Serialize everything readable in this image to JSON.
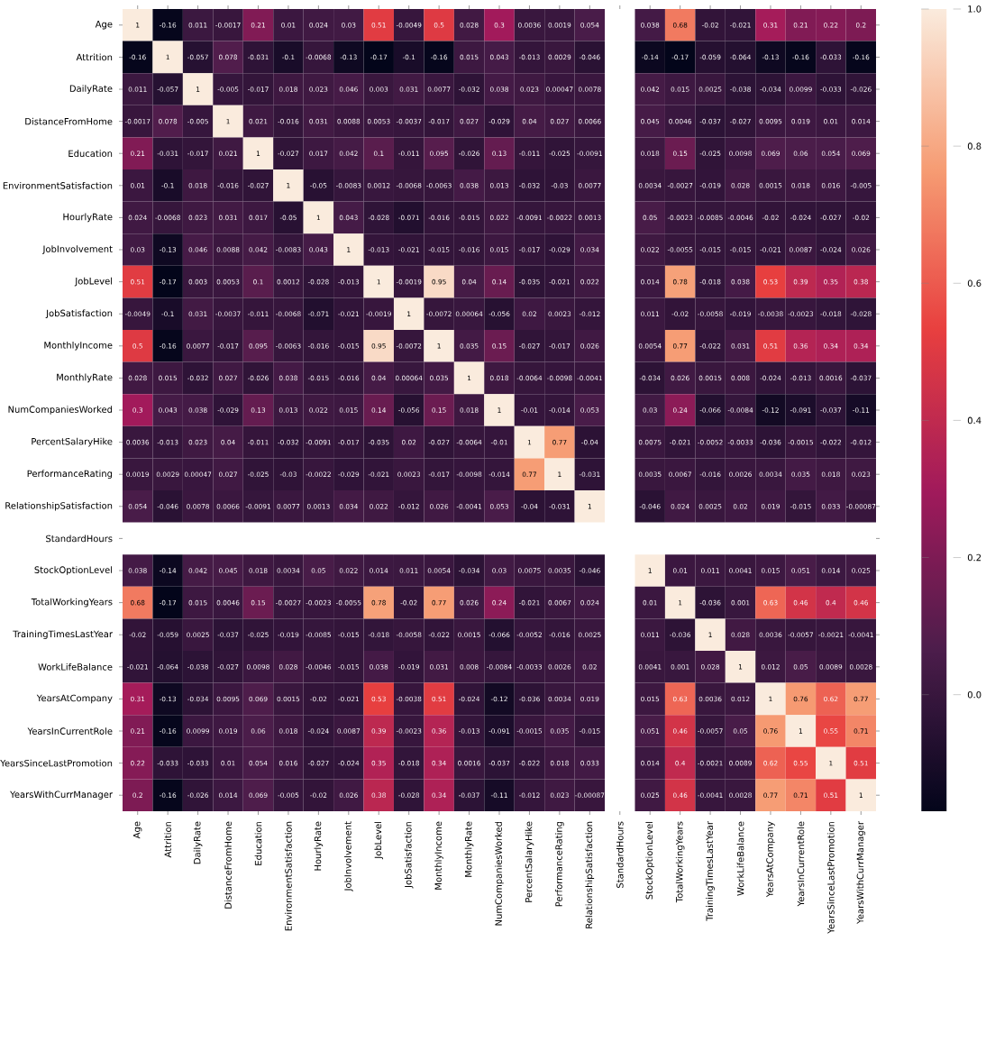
{
  "chart_data": {
    "type": "heatmap",
    "data_labels": true,
    "clim": [
      -0.17,
      1
    ],
    "cticks": [
      {
        "value": 0,
        "label": "0.0"
      },
      {
        "value": 0.2,
        "label": "0.2"
      },
      {
        "value": 0.4,
        "label": "0.4"
      },
      {
        "value": 0.6,
        "label": "0.6"
      },
      {
        "value": 0.8,
        "label": "0.8"
      },
      {
        "value": 1,
        "label": "1.0"
      }
    ],
    "categories": [
      "Age",
      "Attrition",
      "DailyRate",
      "DistanceFromHome",
      "Education",
      "EnvironmentSatisfaction",
      "HourlyRate",
      "JobInvolvement",
      "JobLevel",
      "JobSatisfaction",
      "MonthlyIncome",
      "MonthlyRate",
      "NumCompaniesWorked",
      "PercentSalaryHike",
      "PerformanceRating",
      "RelationshipSatisfaction",
      "StandardHours",
      "StockOptionLevel",
      "TotalWorkingYears",
      "TrainingTimesLastYear",
      "WorkLifeBalance",
      "YearsAtCompany",
      "YearsInCurrentRole",
      "YearsSinceLastPromotion",
      "YearsWithCurrManager"
    ],
    "y_categories": [
      "Age",
      "Attrition",
      "DailyRate",
      "DistanceFromHome",
      "Education",
      "EnvironmentSatisfaction",
      "HourlyRate",
      "JobInvolvement",
      "JobLevel",
      "JobSatisfaction",
      "MonthlyIncome",
      "MonthlyRate",
      "NumCompaniesWorked",
      "PercentSalaryHike",
      "PerformanceRating",
      "RelationshipSatisfaction",
      "StandardHours",
      "StockOptionLevel",
      "TotalWorkingYears",
      "TrainingTimesLastYear",
      "WorkLifeBalance",
      "YearsAtCompany",
      "YearsInCurrentRole",
      "YearsSinceLastPromotion",
      "YearsWithCurrManager"
    ],
    "cells": [
      [
        1,
        -0.16,
        0.011,
        -0.0017,
        0.21,
        0.01,
        0.024,
        0.03,
        0.51,
        -0.0049,
        0.5,
        0.028,
        0.3,
        0.0036,
        0.0019,
        0.054,
        null,
        0.038,
        0.68,
        -0.02,
        -0.021,
        0.31,
        0.21,
        0.22,
        0.2
      ],
      [
        -0.16,
        1,
        -0.057,
        0.078,
        -0.031,
        -0.1,
        -0.0068,
        -0.13,
        -0.17,
        -0.1,
        -0.16,
        0.015,
        0.043,
        -0.013,
        0.0029,
        -0.046,
        null,
        -0.14,
        -0.17,
        -0.059,
        -0.064,
        -0.13,
        -0.16,
        -0.033,
        -0.16
      ],
      [
        0.011,
        -0.057,
        1,
        -0.005,
        -0.017,
        0.018,
        0.023,
        0.046,
        0.003,
        0.031,
        0.0077,
        -0.032,
        0.038,
        0.023,
        0.00047,
        0.0078,
        null,
        0.042,
        0.015,
        0.0025,
        -0.038,
        -0.034,
        0.0099,
        -0.033,
        -0.026
      ],
      [
        -0.0017,
        0.078,
        -0.005,
        1,
        0.021,
        -0.016,
        0.031,
        0.0088,
        0.0053,
        -0.0037,
        -0.017,
        0.027,
        -0.029,
        0.04,
        0.027,
        0.0066,
        null,
        0.045,
        0.0046,
        -0.037,
        -0.027,
        0.0095,
        0.019,
        0.01,
        0.014
      ],
      [
        0.21,
        -0.031,
        -0.017,
        0.021,
        1,
        -0.027,
        0.017,
        0.042,
        0.1,
        -0.011,
        0.095,
        -0.026,
        0.13,
        -0.011,
        -0.025,
        -0.0091,
        null,
        0.018,
        0.15,
        -0.025,
        0.0098,
        0.069,
        0.06,
        0.054,
        0.069
      ],
      [
        0.01,
        -0.1,
        0.018,
        -0.016,
        -0.027,
        1,
        -0.05,
        -0.0083,
        0.0012,
        -0.0068,
        -0.0063,
        0.038,
        0.013,
        -0.032,
        -0.03,
        0.0077,
        null,
        0.0034,
        -0.0027,
        -0.019,
        0.028,
        0.0015,
        0.018,
        0.016,
        -0.005
      ],
      [
        0.024,
        -0.0068,
        0.023,
        0.031,
        0.017,
        -0.05,
        1,
        0.043,
        -0.028,
        -0.071,
        -0.016,
        -0.015,
        0.022,
        -0.0091,
        -0.0022,
        0.0013,
        null,
        0.05,
        -0.0023,
        -0.0085,
        -0.0046,
        -0.02,
        -0.024,
        -0.027,
        -0.02
      ],
      [
        0.03,
        -0.13,
        0.046,
        0.0088,
        0.042,
        -0.0083,
        0.043,
        1,
        -0.013,
        -0.021,
        -0.015,
        -0.016,
        0.015,
        -0.017,
        -0.029,
        0.034,
        null,
        0.022,
        -0.0055,
        -0.015,
        -0.015,
        -0.021,
        0.0087,
        -0.024,
        0.026
      ],
      [
        0.51,
        -0.17,
        0.003,
        0.0053,
        0.1,
        0.0012,
        -0.028,
        -0.013,
        1,
        -0.0019,
        0.95,
        0.04,
        0.14,
        -0.035,
        -0.021,
        0.022,
        null,
        0.014,
        0.78,
        -0.018,
        0.038,
        0.53,
        0.39,
        0.35,
        0.38
      ],
      [
        -0.0049,
        -0.1,
        0.031,
        -0.0037,
        -0.011,
        -0.0068,
        -0.071,
        -0.021,
        -0.0019,
        1,
        -0.0072,
        0.00064,
        -0.056,
        0.02,
        0.0023,
        -0.012,
        null,
        0.011,
        -0.02,
        -0.0058,
        -0.019,
        -0.0038,
        -0.0023,
        -0.018,
        -0.028
      ],
      [
        0.5,
        -0.16,
        0.0077,
        -0.017,
        0.095,
        -0.0063,
        -0.016,
        -0.015,
        0.95,
        -0.0072,
        1,
        0.035,
        0.15,
        -0.027,
        -0.017,
        0.026,
        null,
        0.0054,
        0.77,
        -0.022,
        0.031,
        0.51,
        0.36,
        0.34,
        0.34
      ],
      [
        0.028,
        0.015,
        -0.032,
        0.027,
        -0.026,
        0.038,
        -0.015,
        -0.016,
        0.04,
        0.00064,
        0.035,
        1,
        0.018,
        -0.0064,
        -0.0098,
        -0.0041,
        null,
        -0.034,
        0.026,
        0.0015,
        0.008,
        -0.024,
        -0.013,
        0.0016,
        -0.037
      ],
      [
        0.3,
        0.043,
        0.038,
        -0.029,
        0.13,
        0.013,
        0.022,
        0.015,
        0.14,
        -0.056,
        0.15,
        0.018,
        1,
        -0.01,
        -0.014,
        0.053,
        null,
        0.03,
        0.24,
        -0.066,
        -0.0084,
        -0.12,
        -0.091,
        -0.037,
        -0.11
      ],
      [
        0.0036,
        -0.013,
        0.023,
        0.04,
        -0.011,
        -0.032,
        -0.0091,
        -0.017,
        -0.035,
        0.02,
        -0.027,
        -0.0064,
        -0.01,
        1,
        0.77,
        -0.04,
        null,
        0.0075,
        -0.021,
        -0.0052,
        -0.0033,
        -0.036,
        -0.0015,
        -0.022,
        -0.012
      ],
      [
        0.0019,
        0.0029,
        0.00047,
        0.027,
        -0.025,
        -0.03,
        -0.0022,
        -0.029,
        -0.021,
        0.0023,
        -0.017,
        -0.0098,
        -0.014,
        0.77,
        1,
        -0.031,
        null,
        0.0035,
        0.0067,
        -0.016,
        0.0026,
        0.0034,
        0.035,
        0.018,
        0.023
      ],
      [
        0.054,
        -0.046,
        0.0078,
        0.0066,
        -0.0091,
        0.0077,
        0.0013,
        0.034,
        0.022,
        -0.012,
        0.026,
        -0.0041,
        0.053,
        -0.04,
        -0.031,
        1,
        null,
        -0.046,
        0.024,
        0.0025,
        0.02,
        0.019,
        -0.015,
        0.033,
        -0.00087
      ],
      [
        null,
        null,
        null,
        null,
        null,
        null,
        null,
        null,
        null,
        null,
        null,
        null,
        null,
        null,
        null,
        null,
        null,
        null,
        null,
        null,
        null,
        null,
        null,
        null,
        null
      ],
      [
        0.038,
        -0.14,
        0.042,
        0.045,
        0.018,
        0.0034,
        0.05,
        0.022,
        0.014,
        0.011,
        0.0054,
        -0.034,
        0.03,
        0.0075,
        0.0035,
        -0.046,
        null,
        1,
        0.01,
        0.011,
        0.0041,
        0.015,
        0.051,
        0.014,
        0.025
      ],
      [
        0.68,
        -0.17,
        0.015,
        0.0046,
        0.15,
        -0.0027,
        -0.0023,
        -0.0055,
        0.78,
        -0.02,
        0.77,
        0.026,
        0.24,
        -0.021,
        0.0067,
        0.024,
        null,
        0.01,
        1,
        -0.036,
        0.001,
        0.63,
        0.46,
        0.4,
        0.46
      ],
      [
        -0.02,
        -0.059,
        0.0025,
        -0.037,
        -0.025,
        -0.019,
        -0.0085,
        -0.015,
        -0.018,
        -0.0058,
        -0.022,
        0.0015,
        -0.066,
        -0.0052,
        -0.016,
        0.0025,
        null,
        0.011,
        -0.036,
        1,
        0.028,
        0.0036,
        -0.0057,
        -0.0021,
        -0.0041
      ],
      [
        -0.021,
        -0.064,
        -0.038,
        -0.027,
        0.0098,
        0.028,
        -0.0046,
        -0.015,
        0.038,
        -0.019,
        0.031,
        0.008,
        -0.0084,
        -0.0033,
        0.0026,
        0.02,
        null,
        0.0041,
        0.001,
        0.028,
        1,
        0.012,
        0.05,
        0.0089,
        0.0028
      ],
      [
        0.31,
        -0.13,
        -0.034,
        0.0095,
        0.069,
        0.0015,
        -0.02,
        -0.021,
        0.53,
        -0.0038,
        0.51,
        -0.024,
        -0.12,
        -0.036,
        0.0034,
        0.019,
        null,
        0.015,
        0.63,
        0.0036,
        0.012,
        1,
        0.76,
        0.62,
        0.77
      ],
      [
        0.21,
        -0.16,
        0.0099,
        0.019,
        0.06,
        0.018,
        -0.024,
        0.0087,
        0.39,
        -0.0023,
        0.36,
        -0.013,
        -0.091,
        -0.0015,
        0.035,
        -0.015,
        null,
        0.051,
        0.46,
        -0.0057,
        0.05,
        0.76,
        1,
        0.55,
        0.71
      ],
      [
        0.22,
        -0.033,
        -0.033,
        0.01,
        0.054,
        0.016,
        -0.027,
        -0.024,
        0.35,
        -0.018,
        0.34,
        0.0016,
        -0.037,
        -0.022,
        0.018,
        0.033,
        null,
        0.014,
        0.4,
        -0.0021,
        0.0089,
        0.62,
        0.55,
        1,
        0.51
      ],
      [
        0.2,
        -0.16,
        -0.026,
        0.014,
        0.069,
        -0.005,
        -0.02,
        0.026,
        0.38,
        -0.028,
        0.34,
        -0.037,
        -0.11,
        -0.012,
        0.023,
        -0.00087,
        null,
        0.025,
        0.46,
        -0.0041,
        0.0028,
        0.77,
        0.71,
        0.51,
        1
      ]
    ]
  }
}
